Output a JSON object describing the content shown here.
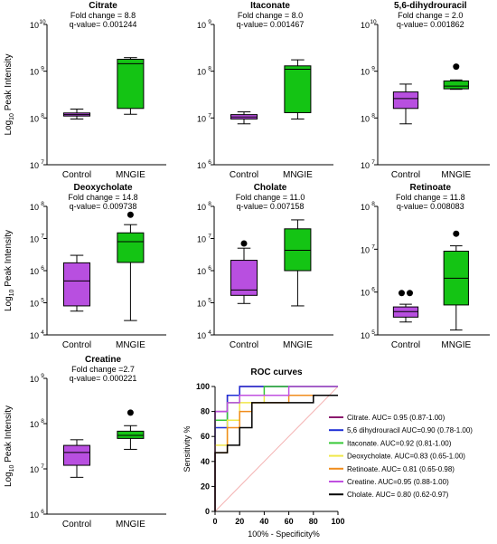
{
  "figure": {
    "ylabel": "Log10 Peak Intensity",
    "ylabel_base": "Log",
    "ylabel_sub": "10",
    "ylabel_rest": " Peak Intensity",
    "group_labels": [
      "Control",
      "MNGIE"
    ],
    "colors": {
      "control": "#b84fe0",
      "mngie": "#14c414",
      "line": "#000000"
    }
  },
  "chart_data": [
    {
      "type": "box",
      "title": "Citrate",
      "stats": [
        "Fold change = 8.8",
        "q-value= 0.001244"
      ],
      "yscale": "log10",
      "ylim_exp": [
        7,
        10
      ],
      "ytick_labels": [
        "10",
        "10",
        "10",
        "10"
      ],
      "ytick_exps": [
        "7",
        "8",
        "9",
        "10"
      ],
      "categories": [
        "Control",
        "MNGIE"
      ],
      "boxes": [
        {
          "group": "Control",
          "min": 95000000,
          "q1": 110000000,
          "median": 118000000,
          "q3": 128000000,
          "max": 155000000,
          "outliers": []
        },
        {
          "group": "MNGIE",
          "min": 120000000,
          "q1": 160000000,
          "median": 1450000000,
          "q3": 1800000000,
          "max": 1950000000,
          "outliers": []
        }
      ]
    },
    {
      "type": "box",
      "title": "Itaconate",
      "stats": [
        "Fold change = 8.0",
        "q-value= 0.001467"
      ],
      "yscale": "log10",
      "ylim_exp": [
        6,
        9
      ],
      "ytick_labels": [
        "10",
        "10",
        "10",
        "10"
      ],
      "ytick_exps": [
        "6",
        "7",
        "8",
        "9"
      ],
      "categories": [
        "Control",
        "MNGIE"
      ],
      "boxes": [
        {
          "group": "Control",
          "min": 7500000,
          "q1": 9500000,
          "median": 10500000,
          "q3": 11800000,
          "max": 13500000,
          "outliers": []
        },
        {
          "group": "MNGIE",
          "min": 9500000,
          "q1": 13000000,
          "median": 110000000,
          "q3": 130000000,
          "max": 175000000,
          "outliers": []
        }
      ]
    },
    {
      "type": "box",
      "title": "5,6-dihydrouracil",
      "stats": [
        "Fold change = 2.0",
        "q-value= 0.001862"
      ],
      "yscale": "log10",
      "ylim_exp": [
        7,
        10
      ],
      "ytick_labels": [
        "10",
        "10",
        "10",
        "10"
      ],
      "ytick_exps": [
        "7",
        "8",
        "9",
        "10"
      ],
      "categories": [
        "Control",
        "MNGIE"
      ],
      "boxes": [
        {
          "group": "Control",
          "min": 75000000,
          "q1": 160000000,
          "median": 260000000,
          "q3": 360000000,
          "max": 530000000,
          "outliers": []
        },
        {
          "group": "MNGIE",
          "min": 410000000,
          "q1": 420000000,
          "median": 480000000,
          "q3": 620000000,
          "max": 650000000,
          "outliers": [
            1250000000
          ]
        }
      ]
    },
    {
      "type": "box",
      "title": "Deoxycholate",
      "stats": [
        "Fold change = 14.8",
        "q-value= 0.009738"
      ],
      "yscale": "log10",
      "ylim_exp": [
        4,
        8
      ],
      "ytick_labels": [
        "10",
        "10",
        "10",
        "10",
        "10"
      ],
      "ytick_exps": [
        "4",
        "5",
        "6",
        "7",
        "8"
      ],
      "categories": [
        "Control",
        "MNGIE"
      ],
      "boxes": [
        {
          "group": "Control",
          "min": 55000,
          "q1": 80000,
          "median": 480000,
          "q3": 1750000,
          "max": 3000000,
          "outliers": []
        },
        {
          "group": "MNGIE",
          "min": 28000,
          "q1": 1800000,
          "median": 8000000,
          "q3": 15000000,
          "max": 27000000,
          "outliers": [
            55000000
          ]
        }
      ]
    },
    {
      "type": "box",
      "title": "Cholate",
      "stats": [
        "Fold change = 11.0",
        "q-value= 0.007158"
      ],
      "yscale": "log10",
      "ylim_exp": [
        4,
        8
      ],
      "ytick_labels": [
        "10",
        "10",
        "10",
        "10",
        "10"
      ],
      "ytick_exps": [
        "4",
        "5",
        "6",
        "7",
        "8"
      ],
      "categories": [
        "Control",
        "MNGIE"
      ],
      "boxes": [
        {
          "group": "Control",
          "min": 95000,
          "q1": 170000,
          "median": 250000,
          "q3": 2100000,
          "max": 5000000,
          "outliers": [
            7000000
          ]
        },
        {
          "group": "MNGIE",
          "min": 80000,
          "q1": 1000000,
          "median": 4300000,
          "q3": 20000000,
          "max": 38000000,
          "outliers": []
        }
      ]
    },
    {
      "type": "box",
      "title": "Retinoate",
      "stats": [
        "Fold change = 11.8",
        "q-value= 0.008083"
      ],
      "yscale": "log10",
      "ylim_exp": [
        5,
        8
      ],
      "ytick_labels": [
        "10",
        "10",
        "10",
        "10"
      ],
      "ytick_exps": [
        "5",
        "6",
        "7",
        "8"
      ],
      "categories": [
        "Control",
        "MNGIE"
      ],
      "boxes": [
        {
          "group": "Control",
          "min": 200000,
          "q1": 260000,
          "median": 350000,
          "q3": 450000,
          "max": 520000,
          "outliers": [
            950000,
            950000
          ]
        },
        {
          "group": "MNGIE",
          "min": 130000,
          "q1": 500000,
          "median": 2100000,
          "q3": 9000000,
          "max": 12000000,
          "outliers": [
            23000000
          ]
        }
      ]
    },
    {
      "type": "box",
      "title": "Creatine",
      "stats": [
        "Fold change =2.7",
        "q-value= 0.000221"
      ],
      "yscale": "log10",
      "ylim_exp": [
        6,
        9
      ],
      "ytick_labels": [
        "10",
        "10",
        "10",
        "10"
      ],
      "ytick_exps": [
        "6",
        "7",
        "8",
        "9"
      ],
      "categories": [
        "Control",
        "MNGIE"
      ],
      "boxes": [
        {
          "group": "Control",
          "min": 6500000,
          "q1": 12000000,
          "median": 23000000,
          "q3": 33000000,
          "max": 44000000,
          "outliers": []
        },
        {
          "group": "MNGIE",
          "min": 27000000,
          "q1": 47000000,
          "median": 55000000,
          "q3": 68000000,
          "max": 90000000,
          "outliers": [
            175000000
          ]
        }
      ]
    },
    {
      "type": "line",
      "title": "ROC curves",
      "xlabel": "100% - Specificity%",
      "ylabel": "Sensitivity %",
      "xlim": [
        0,
        100
      ],
      "ylim": [
        0,
        100
      ],
      "xticks": [
        "0",
        "20",
        "40",
        "60",
        "80",
        "100"
      ],
      "yticks": [
        "0",
        "20",
        "40",
        "60",
        "80",
        "100"
      ],
      "legend_position": "right",
      "reference_line": {
        "from": [
          0,
          0
        ],
        "to": [
          100,
          100
        ],
        "color": "#f4b3b3"
      },
      "series": [
        {
          "name": "Citrate. AUC= 0.95 (0.87-1.00)",
          "color": "#8b1a6e",
          "x": [
            0,
            0,
            10,
            10,
            20,
            20,
            100
          ],
          "y": [
            0,
            80,
            80,
            93,
            93,
            100,
            100
          ]
        },
        {
          "name": "5,6 dihydrouracil AUC=0.90 (0.78-1.00)",
          "color": "#1f2fd6",
          "x": [
            0,
            0,
            10,
            10,
            20,
            20,
            100
          ],
          "y": [
            0,
            67,
            67,
            93,
            93,
            100,
            100
          ]
        },
        {
          "name": "Itaconate. AUC=0.92 (0.81-1.00)",
          "color": "#37c837",
          "x": [
            0,
            0,
            10,
            10,
            20,
            20,
            40,
            40,
            100
          ],
          "y": [
            0,
            73,
            73,
            87,
            87,
            93,
            93,
            100,
            100
          ]
        },
        {
          "name": "Deoxycholate. AUC=0.83 (0.65-1.00)",
          "color": "#f0e84a",
          "x": [
            0,
            0,
            10,
            10,
            20,
            20,
            40,
            40,
            100
          ],
          "y": [
            0,
            53,
            53,
            73,
            73,
            87,
            87,
            93,
            93
          ]
        },
        {
          "name": "Retinoate. AUC= 0.81 (0.65-0.98)",
          "color": "#f08c1c",
          "x": [
            0,
            0,
            10,
            10,
            20,
            20,
            30,
            30,
            60,
            60,
            100
          ],
          "y": [
            0,
            47,
            47,
            67,
            67,
            80,
            80,
            87,
            87,
            93,
            93
          ]
        },
        {
          "name": "Creatine. AUC=0.95 (0.88-1.00)",
          "color": "#c050e0",
          "x": [
            0,
            0,
            10,
            10,
            20,
            20,
            60,
            60,
            100
          ],
          "y": [
            0,
            80,
            80,
            87,
            87,
            93,
            93,
            100,
            100
          ]
        },
        {
          "name": "Cholate. AUC= 0.80 (0.62-0.97)",
          "color": "#000000",
          "x": [
            0,
            0,
            10,
            10,
            20,
            20,
            30,
            30,
            80,
            80,
            100
          ],
          "y": [
            0,
            47,
            47,
            53,
            53,
            67,
            67,
            87,
            87,
            93,
            93
          ]
        }
      ]
    }
  ]
}
